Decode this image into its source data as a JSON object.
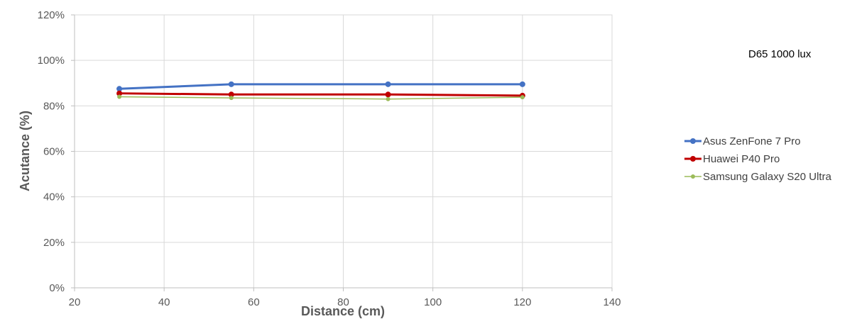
{
  "chart_data": {
    "type": "line",
    "title": "",
    "annotation": "D65 1000 lux",
    "xlabel": "Distance (cm)",
    "ylabel": "Acutance (%)",
    "xlim": [
      20,
      140
    ],
    "ylim": [
      0,
      120
    ],
    "x_ticks": [
      "20",
      "40",
      "60",
      "80",
      "100",
      "120",
      "140"
    ],
    "y_ticks": [
      "0%",
      "20%",
      "40%",
      "60%",
      "80%",
      "100%",
      "120%"
    ],
    "grid": true,
    "legend_position": "right",
    "series": [
      {
        "name": "Asus ZenFone 7 Pro",
        "color": "#4472c4",
        "x": [
          30,
          55,
          90,
          120
        ],
        "y": [
          87.5,
          89.5,
          89.5,
          89.5
        ]
      },
      {
        "name": "Huawei P40 Pro",
        "color": "#c00000",
        "x": [
          30,
          55,
          90,
          120
        ],
        "y": [
          85.5,
          85.0,
          85.0,
          84.5
        ]
      },
      {
        "name": "Samsung Galaxy S20 Ultra",
        "color": "#9bbb59",
        "x": [
          30,
          55,
          90,
          120
        ],
        "y": [
          84.0,
          83.5,
          83.0,
          83.8
        ]
      }
    ]
  }
}
